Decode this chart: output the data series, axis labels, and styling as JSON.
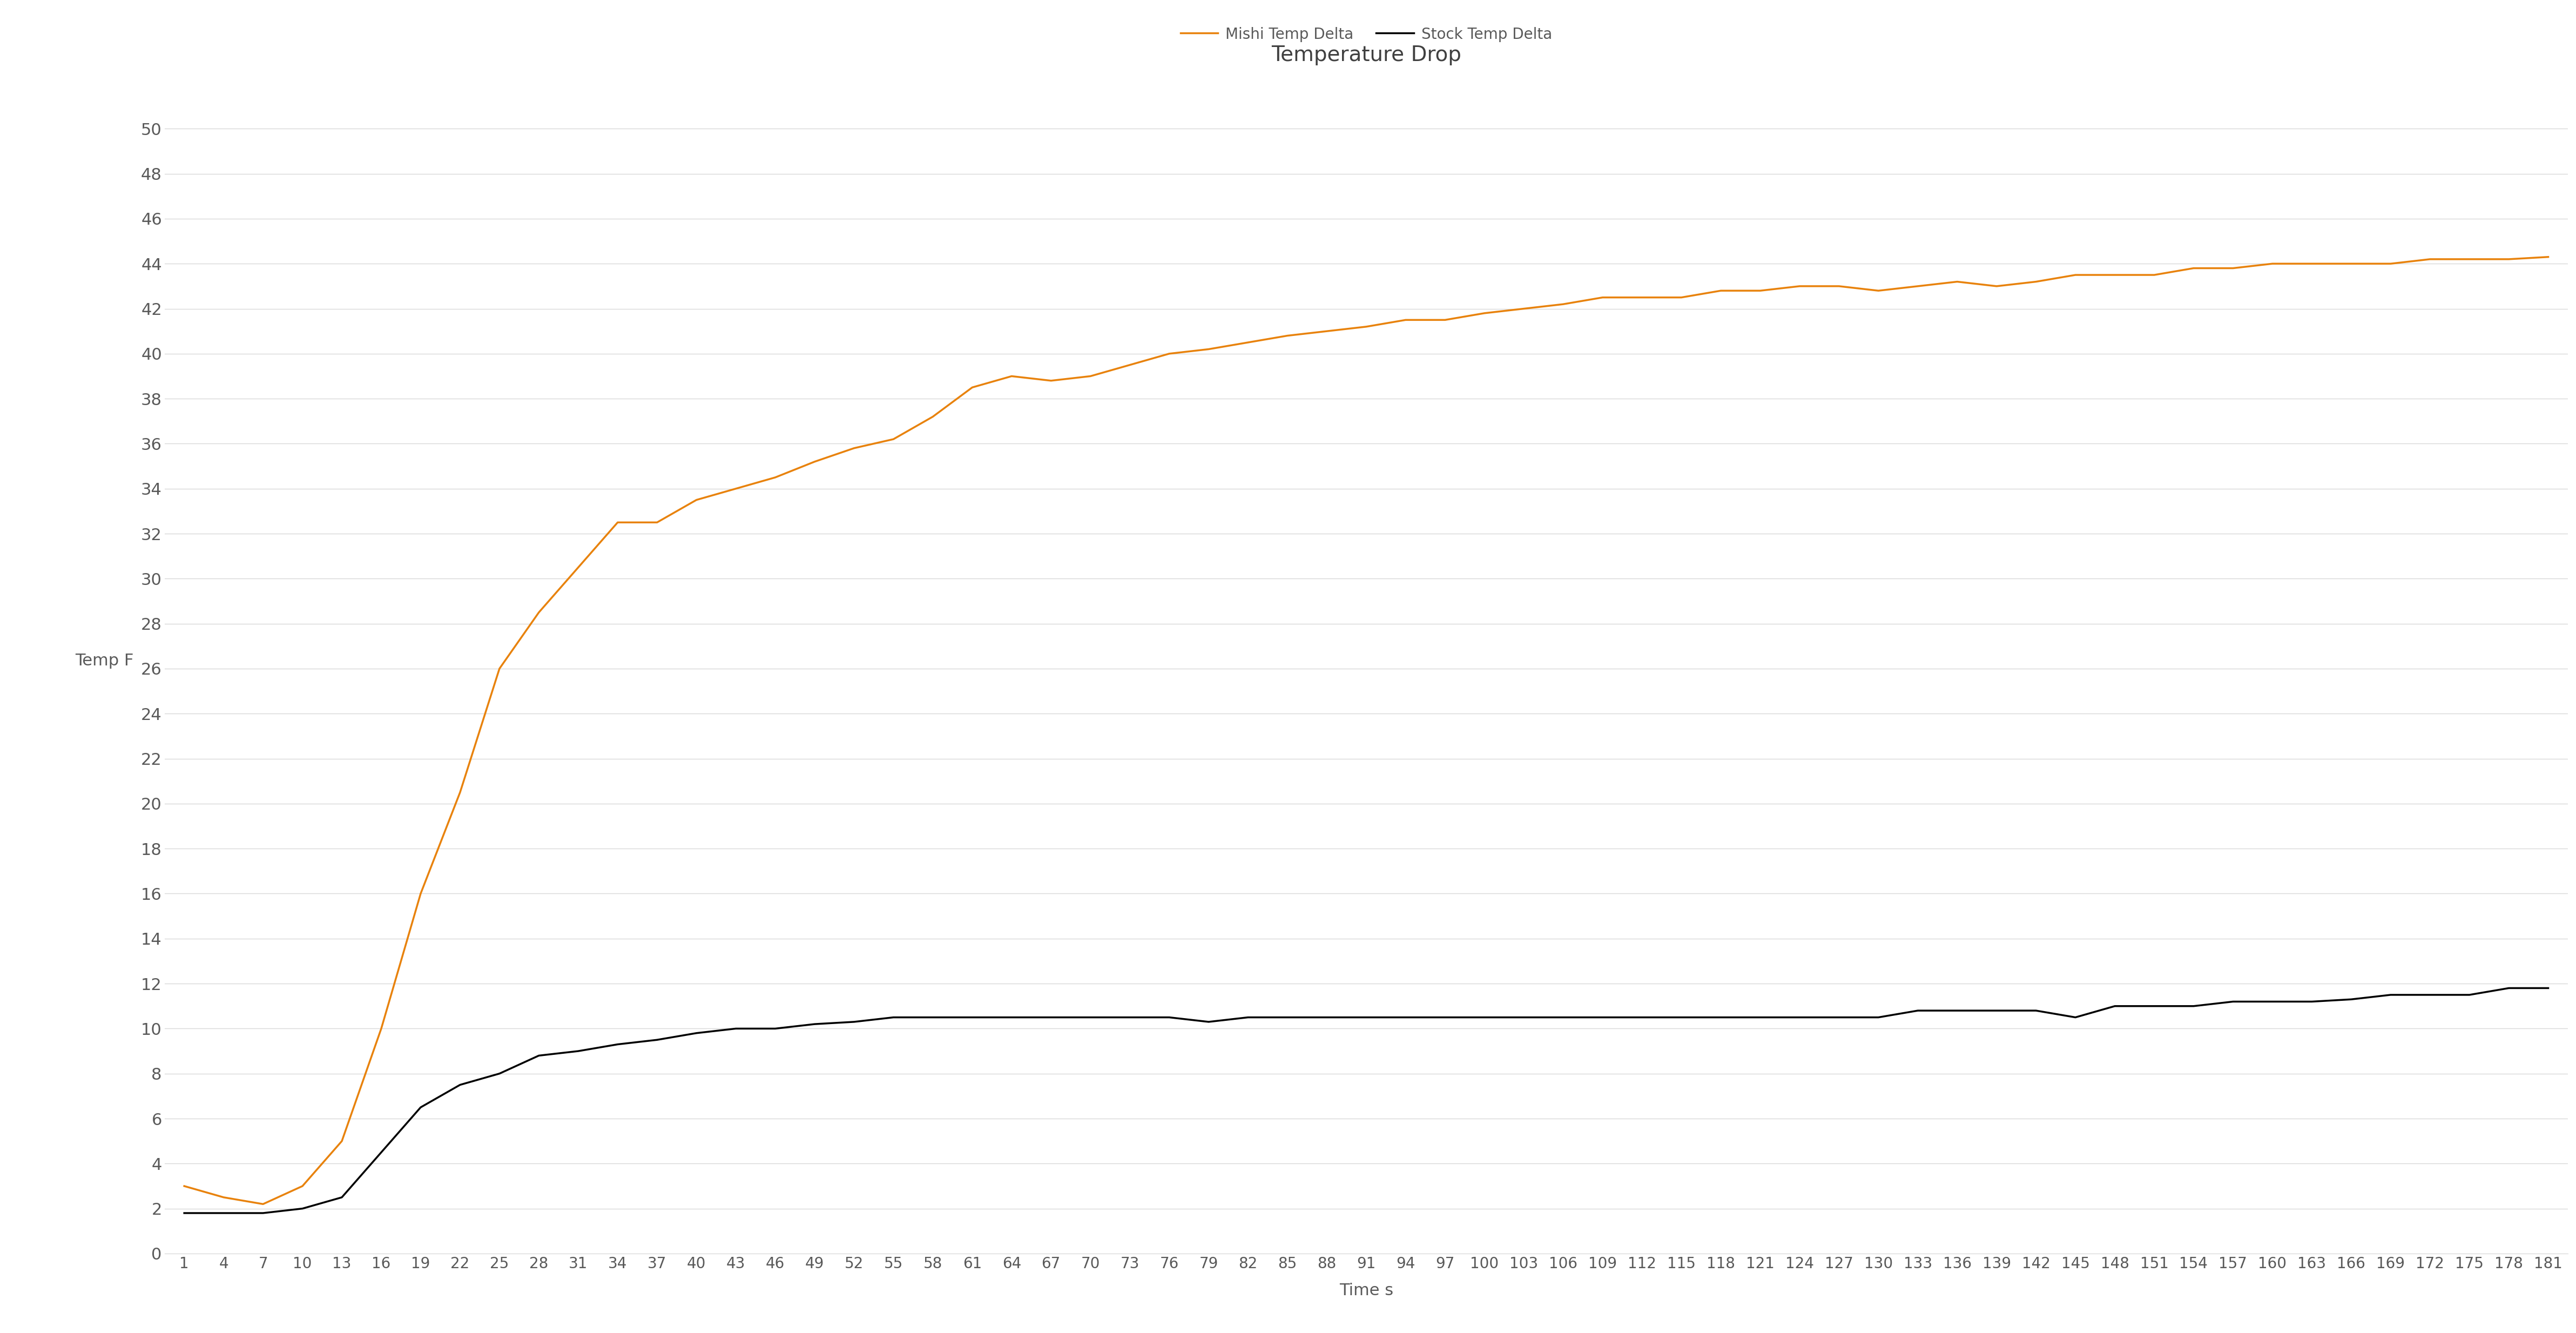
{
  "title": "Temperature Drop",
  "xlabel": "Time s",
  "ylabel": "Temp F",
  "background_color": "#ffffff",
  "plot_bg_color": "#ffffff",
  "grid_color": "#d9d9d9",
  "mishi_color": "#E8820C",
  "stock_color": "#000000",
  "mishi_label": "Mishi Temp Delta",
  "stock_label": "Stock Temp Delta",
  "ylim": [
    0,
    52
  ],
  "yticks": [
    0,
    2,
    4,
    6,
    8,
    10,
    12,
    14,
    16,
    18,
    20,
    22,
    24,
    26,
    28,
    30,
    32,
    34,
    36,
    38,
    40,
    42,
    44,
    46,
    48,
    50
  ],
  "x_values": [
    1,
    4,
    7,
    10,
    13,
    16,
    19,
    22,
    25,
    28,
    31,
    34,
    37,
    40,
    43,
    46,
    49,
    52,
    55,
    58,
    61,
    64,
    67,
    70,
    73,
    76,
    79,
    82,
    85,
    88,
    91,
    94,
    97,
    100,
    103,
    106,
    109,
    112,
    115,
    118,
    121,
    124,
    127,
    130,
    133,
    136,
    139,
    142,
    145,
    148,
    151,
    154,
    157,
    160,
    163,
    166,
    169,
    172,
    175,
    178,
    181
  ],
  "mishi_values": [
    3.0,
    2.5,
    2.2,
    3.0,
    5.0,
    10.0,
    16.0,
    20.5,
    26.0,
    28.5,
    30.5,
    32.5,
    32.5,
    33.5,
    34.0,
    34.5,
    35.2,
    35.8,
    36.2,
    37.2,
    38.5,
    39.0,
    38.8,
    39.0,
    39.5,
    40.0,
    40.2,
    40.5,
    40.8,
    41.0,
    41.2,
    41.5,
    41.5,
    41.8,
    42.0,
    42.2,
    42.5,
    42.5,
    42.5,
    42.8,
    42.8,
    43.0,
    43.0,
    42.8,
    43.0,
    43.2,
    43.0,
    43.2,
    43.5,
    43.5,
    43.5,
    43.8,
    43.8,
    44.0,
    44.0,
    44.0,
    44.0,
    44.2,
    44.2,
    44.2,
    44.3
  ],
  "stock_values": [
    1.8,
    1.8,
    1.8,
    2.0,
    2.5,
    4.5,
    6.5,
    7.5,
    8.0,
    8.8,
    9.0,
    9.3,
    9.5,
    9.8,
    10.0,
    10.0,
    10.2,
    10.3,
    10.5,
    10.5,
    10.5,
    10.5,
    10.5,
    10.5,
    10.5,
    10.5,
    10.3,
    10.5,
    10.5,
    10.5,
    10.5,
    10.5,
    10.5,
    10.5,
    10.5,
    10.5,
    10.5,
    10.5,
    10.5,
    10.5,
    10.5,
    10.5,
    10.5,
    10.5,
    10.8,
    10.8,
    10.8,
    10.8,
    10.5,
    11.0,
    11.0,
    11.0,
    11.2,
    11.2,
    11.2,
    11.3,
    11.5,
    11.5,
    11.5,
    11.8,
    11.8
  ]
}
